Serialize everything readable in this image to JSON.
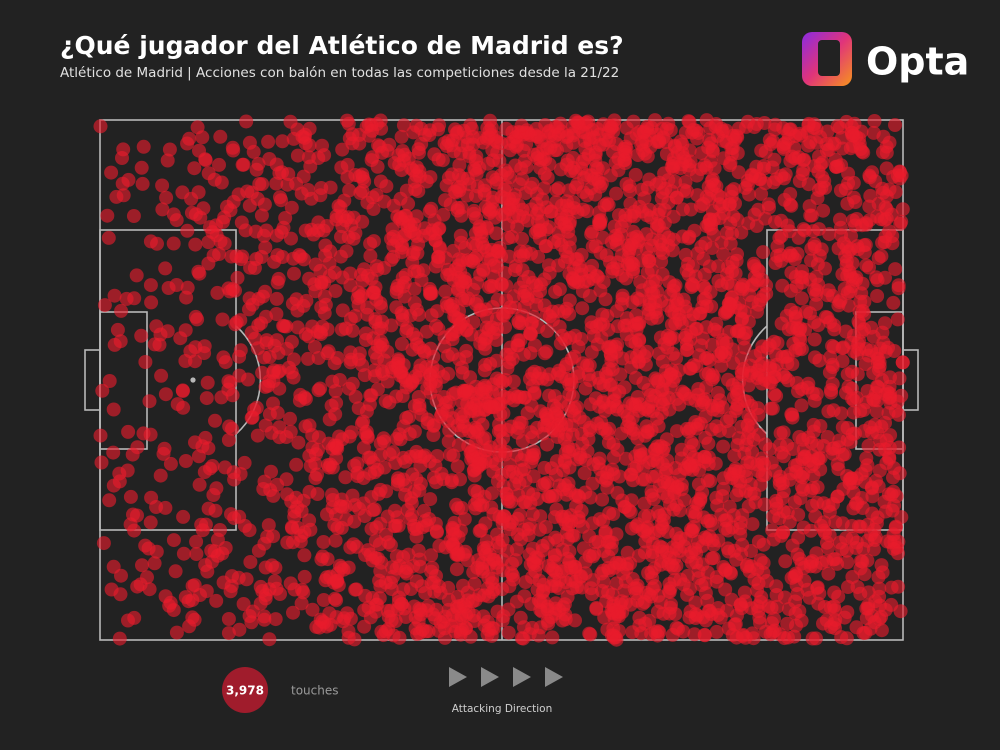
{
  "header": {
    "title": "¿Qué jugador del Atlético de Madrid es?",
    "subtitle": "Atlético de Madrid | Acciones con balón en todas las competiciones desde la 21/22"
  },
  "logo": {
    "text": "Opta"
  },
  "stats": {
    "touches": {
      "value": 3978,
      "label": "3,978"
    },
    "touches_label": "touches"
  },
  "direction": {
    "label": "Attacking Direction"
  }
}
